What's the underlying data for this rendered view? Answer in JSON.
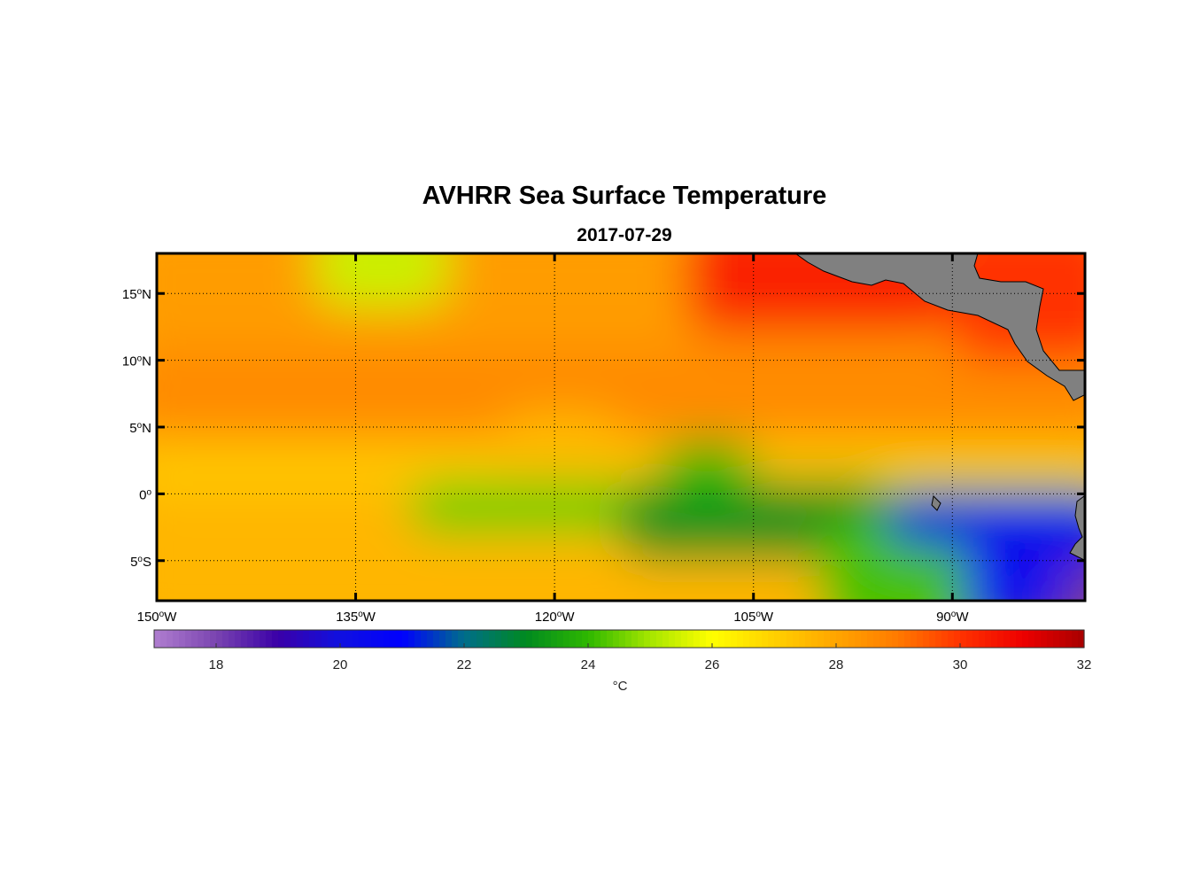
{
  "figure": {
    "title": "AVHRR Sea Surface Temperature",
    "date": "2017-07-29"
  },
  "map": {
    "lon_range": [
      -150,
      -80
    ],
    "lat_range": [
      -8,
      18
    ],
    "lon_ticks": [
      -150,
      -135,
      -120,
      -105,
      -90
    ],
    "lon_tick_labels": [
      "150",
      "135",
      "120",
      "105",
      "90"
    ],
    "lon_hemisphere": "W",
    "lat_ticks": [
      15,
      10,
      5,
      0,
      -5
    ],
    "lat_tick_labels": [
      "15",
      "10",
      "5",
      "0",
      "5"
    ],
    "lat_hemispheres": [
      "N",
      "N",
      "N",
      "",
      "S"
    ],
    "degree_symbol": "o",
    "grid": true,
    "land_color": "#808080",
    "sst_field": [
      {
        "lon_min": -150,
        "lon_max": -80,
        "lat_min": 11,
        "lat_max": 18,
        "sst": 28.2
      },
      {
        "lon_min": -150,
        "lon_max": -80,
        "lat_min": 4,
        "lat_max": 11,
        "sst": 28.6
      },
      {
        "lon_min": -150,
        "lon_max": -80,
        "lat_min": 0,
        "lat_max": 4,
        "sst": 27.2
      },
      {
        "lon_min": -150,
        "lon_max": -80,
        "lat_min": -8,
        "lat_max": 0,
        "sst": 27.6
      },
      {
        "lon_min": -138,
        "lon_max": -128,
        "lat_min": 14,
        "lat_max": 18,
        "sst": 25.4
      },
      {
        "lon_min": -110,
        "lon_max": -90,
        "lat_min": 12,
        "lat_max": 18,
        "sst": 30.3
      },
      {
        "lon_min": -90,
        "lon_max": -80,
        "lat_min": 10,
        "lat_max": 18,
        "sst": 30.0
      },
      {
        "lon_min": -124,
        "lon_max": -115,
        "lat_min": 0,
        "lat_max": 6,
        "sst": 27.5
      },
      {
        "lon_min": -131,
        "lon_max": -80,
        "lat_min": -3,
        "lat_max": 1,
        "sst": 24.5
      },
      {
        "lon_min": -115,
        "lon_max": -95,
        "lat_min": -5,
        "lat_max": 1,
        "sst": 23.2
      },
      {
        "lon_min": -112,
        "lon_max": -105,
        "lat_min": 0,
        "lat_max": 4,
        "sst": 24.0
      },
      {
        "lon_min": -100,
        "lon_max": -80,
        "lat_min": -8,
        "lat_max": -2,
        "sst": 24.2
      },
      {
        "lon_min": -95,
        "lon_max": -80,
        "lat_min": -4,
        "lat_max": 0,
        "sst": 21.3
      },
      {
        "lon_min": -89,
        "lon_max": -80,
        "lat_min": -8,
        "lat_max": -1,
        "sst": 20.4
      },
      {
        "lon_min": -82,
        "lon_max": -80,
        "lat_min": -8,
        "lat_max": -5,
        "sst": 18.2
      }
    ]
  },
  "colorbar": {
    "min": 17,
    "max": 32,
    "ticks": [
      18,
      20,
      22,
      24,
      26,
      28,
      30,
      32
    ],
    "tick_labels": [
      "18",
      "20",
      "22",
      "24",
      "26",
      "28",
      "30",
      "32"
    ],
    "units": "°C",
    "colorstops": [
      {
        "value": 17,
        "color": "#b07ed0"
      },
      {
        "value": 18,
        "color": "#7a44b0"
      },
      {
        "value": 19,
        "color": "#3a00a8"
      },
      {
        "value": 20,
        "color": "#1010e0"
      },
      {
        "value": 21,
        "color": "#0000ff"
      },
      {
        "value": 22,
        "color": "#006e8a"
      },
      {
        "value": 23,
        "color": "#008a20"
      },
      {
        "value": 24,
        "color": "#2eb800"
      },
      {
        "value": 25,
        "color": "#a6e600"
      },
      {
        "value": 26,
        "color": "#ffff00"
      },
      {
        "value": 27,
        "color": "#ffd000"
      },
      {
        "value": 28,
        "color": "#ffa500"
      },
      {
        "value": 29,
        "color": "#ff7a00"
      },
      {
        "value": 30,
        "color": "#ff3300"
      },
      {
        "value": 31,
        "color": "#ee0000"
      },
      {
        "value": 32,
        "color": "#a80000"
      }
    ]
  }
}
